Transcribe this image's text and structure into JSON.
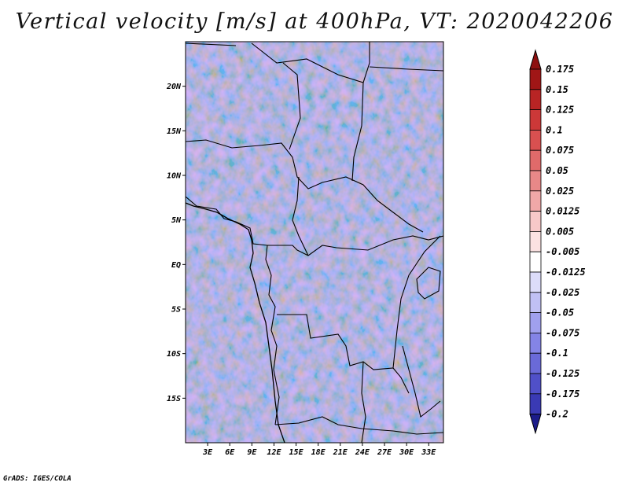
{
  "title": "Vertical velocity [m/s] at 400hPa, VT: 2020042206",
  "credit": "GrADS: IGES/COLA",
  "map": {
    "lon_range": [
      0,
      35
    ],
    "lat_range": [
      -20,
      25
    ],
    "lat_ticks": [
      {
        "value": 20,
        "label": "20N"
      },
      {
        "value": 15,
        "label": "15N"
      },
      {
        "value": 10,
        "label": "10N"
      },
      {
        "value": 5,
        "label": "5N"
      },
      {
        "value": 0,
        "label": "EQ"
      },
      {
        "value": -5,
        "label": "5S"
      },
      {
        "value": -10,
        "label": "10S"
      },
      {
        "value": -15,
        "label": "15S"
      }
    ],
    "lon_ticks": [
      {
        "value": 3,
        "label": "3E"
      },
      {
        "value": 6,
        "label": "6E"
      },
      {
        "value": 9,
        "label": "9E"
      },
      {
        "value": 12,
        "label": "12E"
      },
      {
        "value": 15,
        "label": "15E"
      },
      {
        "value": 18,
        "label": "18E"
      },
      {
        "value": 21,
        "label": "21E"
      },
      {
        "value": 24,
        "label": "24E"
      },
      {
        "value": 27,
        "label": "27E"
      },
      {
        "value": 30,
        "label": "30E"
      },
      {
        "value": 33,
        "label": "33E"
      }
    ]
  },
  "colorbar": {
    "levels": [
      {
        "label": "0.175",
        "color": "#a01616"
      },
      {
        "label": "0.15",
        "color": "#b82424"
      },
      {
        "label": "0.125",
        "color": "#cc3838"
      },
      {
        "label": "0.1",
        "color": "#d95050"
      },
      {
        "label": "0.075",
        "color": "#e06a6a"
      },
      {
        "label": "0.05",
        "color": "#e88888"
      },
      {
        "label": "0.025",
        "color": "#f0a8a8"
      },
      {
        "label": "0.0125",
        "color": "#f7c8c8"
      },
      {
        "label": "0.005",
        "color": "#fbe2e2"
      },
      {
        "label": "-0.005",
        "color": "#ffffff"
      },
      {
        "label": "-0.0125",
        "color": "#dcdcfa"
      },
      {
        "label": "-0.025",
        "color": "#c0c0f4"
      },
      {
        "label": "-0.05",
        "color": "#a0a0ee"
      },
      {
        "label": "-0.075",
        "color": "#8484e6"
      },
      {
        "label": "-0.1",
        "color": "#6a6ad8"
      },
      {
        "label": "-0.125",
        "color": "#5050c8"
      },
      {
        "label": "-0.175",
        "color": "#3a3ab4"
      },
      {
        "label": "-0.2",
        "color": "#2a2a9c"
      }
    ],
    "top_color": "#8e1010",
    "bottom_color": "#1c1c8a"
  }
}
